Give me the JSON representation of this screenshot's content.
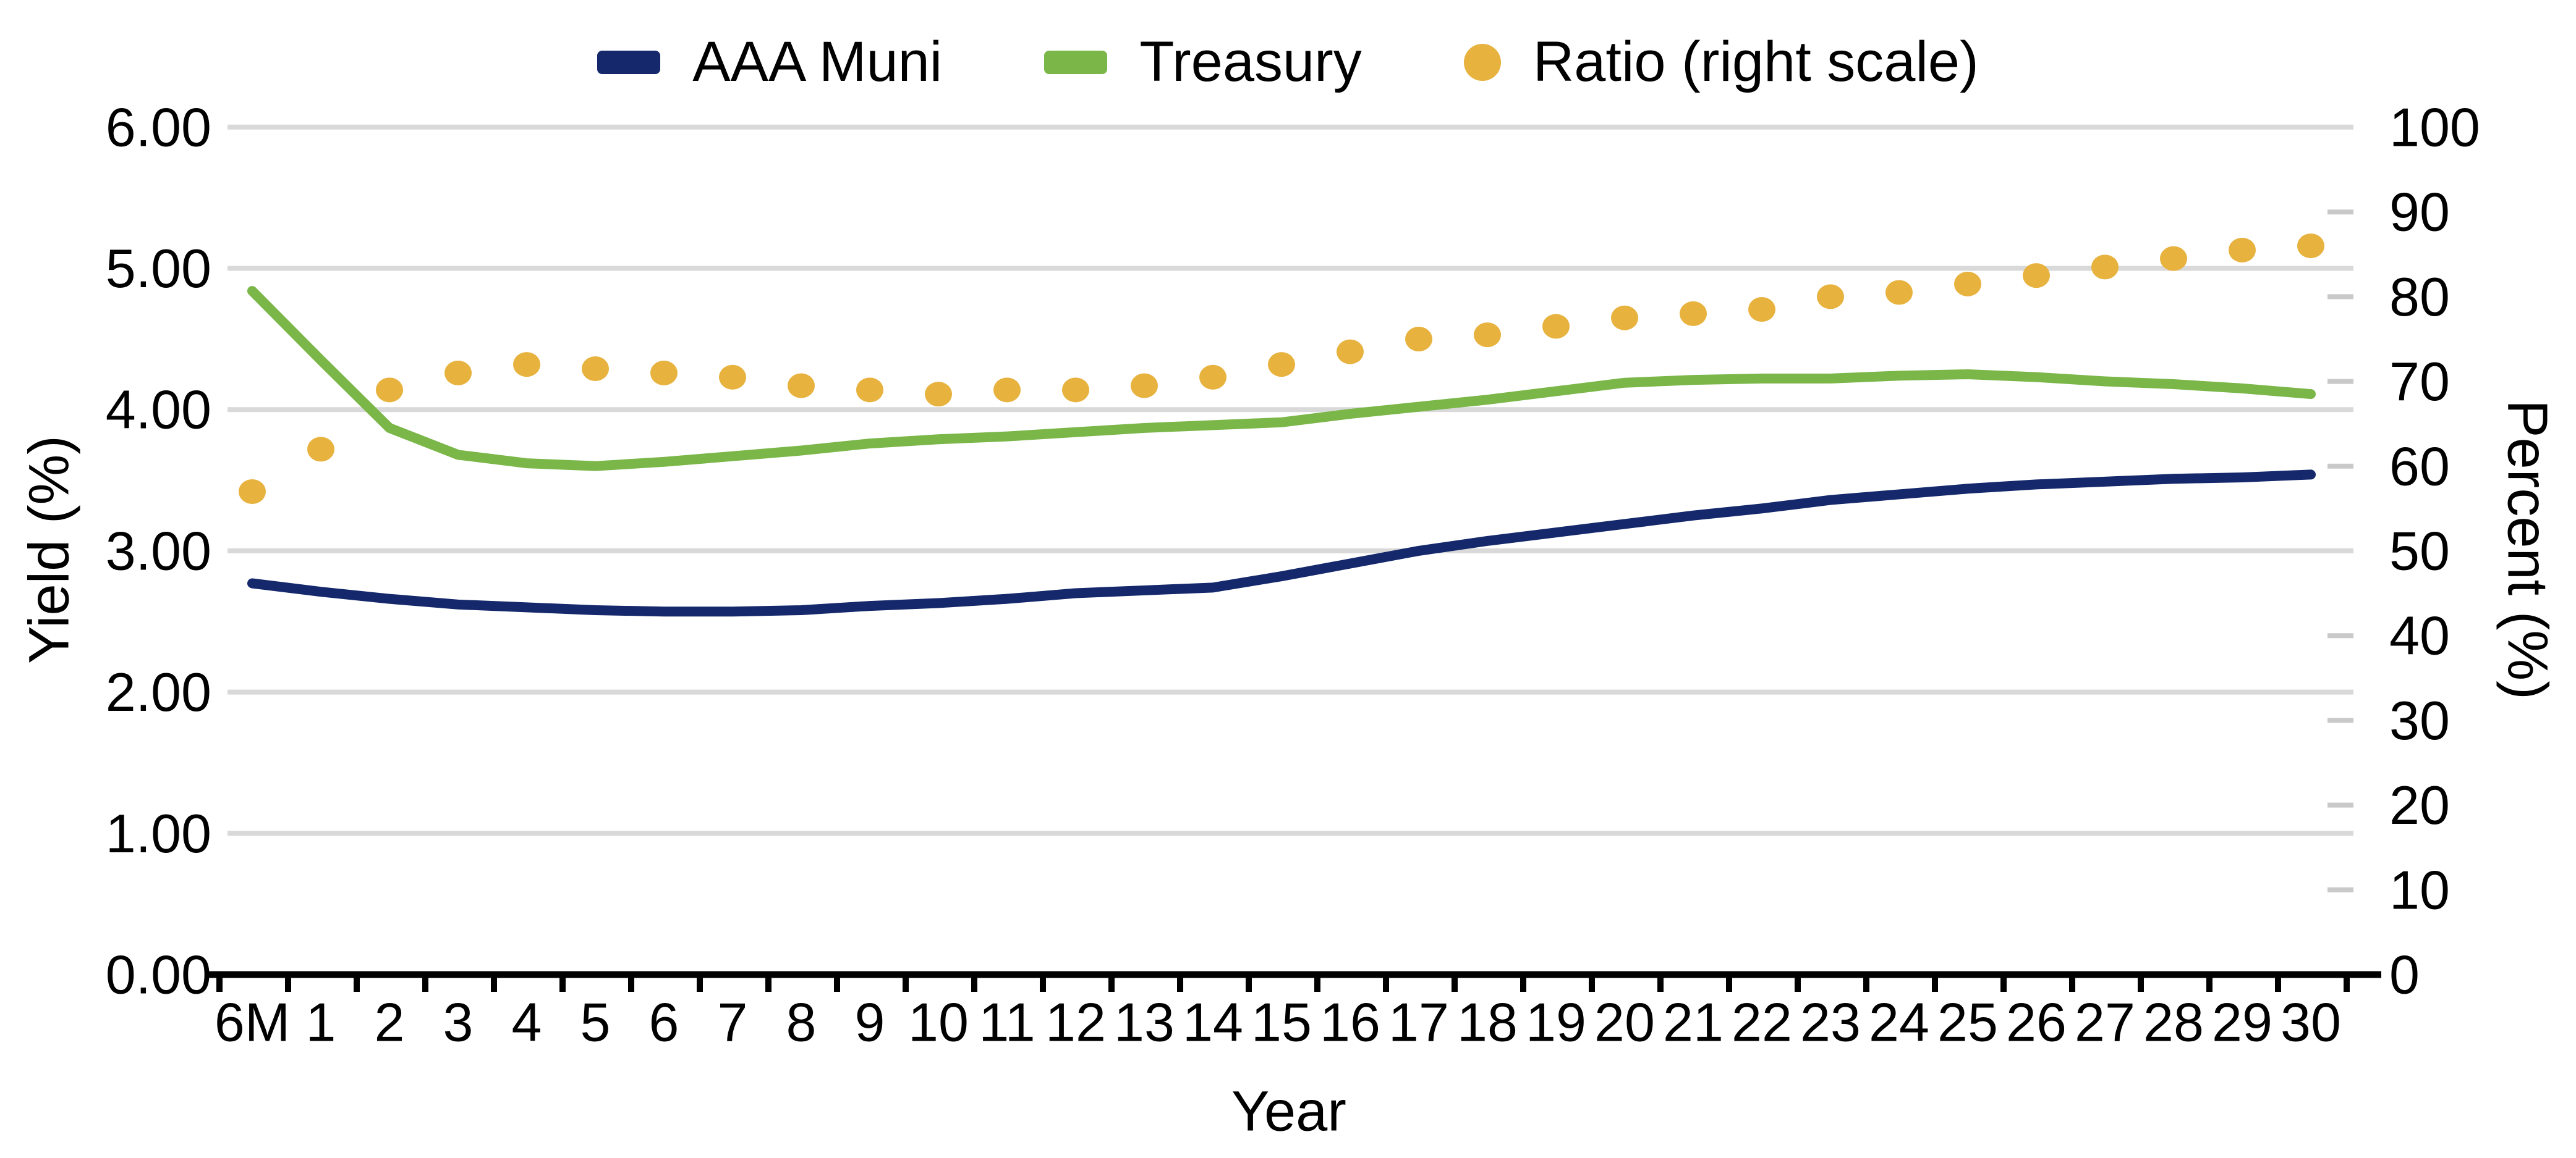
{
  "chart_data": {
    "type": "line",
    "title": "",
    "xlabel": "Year",
    "grid": true,
    "categories": [
      "6M",
      "1",
      "2",
      "3",
      "4",
      "5",
      "6",
      "7",
      "8",
      "9",
      "10",
      "11",
      "12",
      "13",
      "14",
      "15",
      "16",
      "17",
      "18",
      "19",
      "20",
      "21",
      "22",
      "23",
      "24",
      "25",
      "26",
      "27",
      "28",
      "29",
      "30"
    ],
    "series": [
      {
        "name": "AAA Muni",
        "type": "line",
        "axis": "left",
        "color": "#14286b",
        "values": [
          2.77,
          2.71,
          2.66,
          2.62,
          2.6,
          2.58,
          2.57,
          2.57,
          2.58,
          2.61,
          2.63,
          2.66,
          2.7,
          2.72,
          2.74,
          2.82,
          2.91,
          3.0,
          3.07,
          3.13,
          3.19,
          3.25,
          3.3,
          3.36,
          3.4,
          3.44,
          3.47,
          3.49,
          3.51,
          3.52,
          3.54
        ]
      },
      {
        "name": "Treasury",
        "type": "line",
        "axis": "left",
        "color": "#7ab648",
        "values": [
          4.84,
          4.35,
          3.87,
          3.68,
          3.62,
          3.6,
          3.63,
          3.67,
          3.71,
          3.76,
          3.79,
          3.81,
          3.84,
          3.87,
          3.89,
          3.91,
          3.97,
          4.02,
          4.07,
          4.13,
          4.19,
          4.21,
          4.22,
          4.22,
          4.24,
          4.25,
          4.23,
          4.2,
          4.18,
          4.15,
          4.11
        ]
      },
      {
        "name": "Ratio (right scale)",
        "type": "scatter",
        "axis": "right",
        "color": "#e7b23d",
        "values": [
          57,
          62,
          69,
          71,
          72,
          71.5,
          71,
          70.5,
          69.5,
          69,
          68.5,
          69,
          69,
          69.5,
          70.5,
          72,
          73.5,
          75,
          75.5,
          76.5,
          77.5,
          78,
          78.5,
          80,
          80.5,
          81.5,
          82.5,
          83.5,
          84.5,
          85.5,
          86
        ]
      }
    ],
    "y_axis_left": {
      "label": "Yield (%)",
      "min": 0,
      "max": 6,
      "ticks": [
        "0.00",
        "1.00",
        "2.00",
        "3.00",
        "4.00",
        "5.00",
        "6.00"
      ]
    },
    "y_axis_right": {
      "label": "Percent (%)",
      "min": 0,
      "max": 100,
      "ticks": [
        "0",
        "10",
        "20",
        "30",
        "40",
        "50",
        "60",
        "70",
        "80",
        "90",
        "100"
      ]
    },
    "legend": {
      "position": "top-center",
      "items": [
        {
          "label": "AAA Muni",
          "marker": "line",
          "color": "#14286b"
        },
        {
          "label": "Treasury",
          "marker": "line",
          "color": "#7ab648"
        },
        {
          "label": "Ratio (right scale)",
          "marker": "dot",
          "color": "#e7b23d"
        }
      ]
    },
    "colors": {
      "gridline": "#d9d9d9",
      "right_tick_stub": "#c9c9c9",
      "axis_line": "#000000",
      "text": "#000000",
      "background": "#ffffff"
    }
  }
}
